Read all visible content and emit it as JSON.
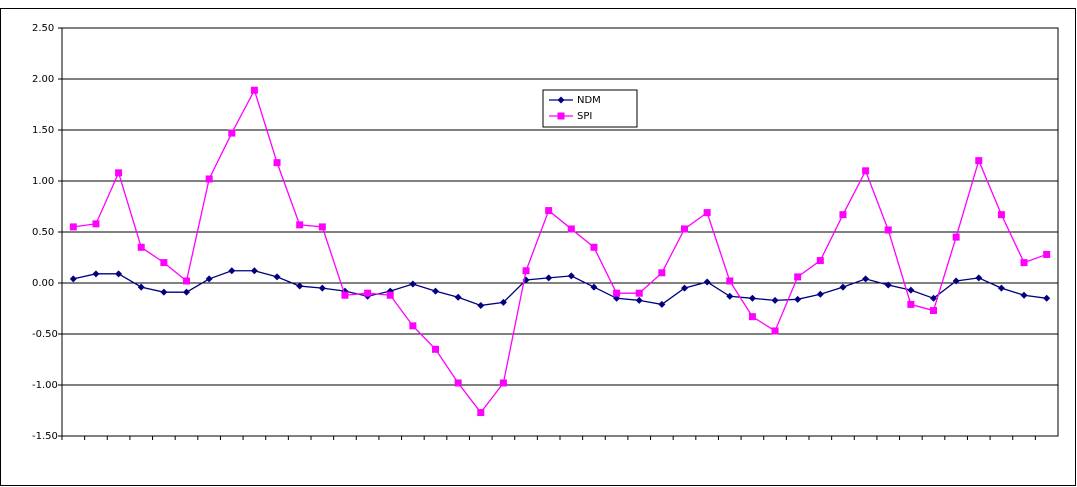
{
  "chart_data": {
    "type": "line",
    "categories": [
      null,
      null,
      null,
      null,
      null,
      null,
      null,
      null,
      null,
      null,
      null,
      null,
      null,
      null,
      null,
      null,
      null,
      null,
      null,
      null,
      null,
      null,
      null,
      null,
      null,
      null,
      null,
      null,
      null,
      null,
      null,
      null,
      null,
      null,
      null,
      null,
      null,
      null,
      null,
      null,
      null,
      null,
      null,
      null
    ],
    "series": [
      {
        "name": "NDM",
        "color": "#000080",
        "marker": "diamond",
        "values": [
          0.04,
          0.09,
          0.09,
          -0.04,
          -0.09,
          -0.09,
          0.04,
          0.12,
          0.12,
          0.06,
          -0.03,
          -0.05,
          -0.08,
          -0.13,
          -0.08,
          -0.01,
          -0.08,
          -0.14,
          -0.22,
          -0.19,
          0.03,
          0.05,
          0.07,
          -0.04,
          -0.15,
          -0.17,
          -0.21,
          -0.05,
          0.01,
          -0.13,
          -0.15,
          -0.17,
          -0.16,
          -0.11,
          -0.04,
          0.04,
          -0.02,
          -0.07,
          -0.15,
          0.02,
          0.05,
          -0.05,
          -0.12,
          -0.15
        ]
      },
      {
        "name": "SPI",
        "color": "#ff00ff",
        "marker": "square",
        "values": [
          0.55,
          0.58,
          1.08,
          0.35,
          0.2,
          0.02,
          1.02,
          1.47,
          1.89,
          1.18,
          0.57,
          0.55,
          -0.12,
          -0.1,
          -0.12,
          -0.42,
          -0.65,
          -0.98,
          -1.27,
          -0.98,
          0.12,
          0.71,
          0.53,
          0.35,
          -0.1,
          -0.1,
          0.1,
          0.53,
          0.69,
          0.02,
          -0.33,
          -0.47,
          0.06,
          0.22,
          0.67,
          1.1,
          0.52,
          -0.21,
          -0.27,
          0.45,
          1.2,
          0.67,
          0.2,
          0.28
        ]
      }
    ],
    "ylim": [
      -1.5,
      2.5
    ],
    "yticks": [
      {
        "value": -1.5,
        "label": "-1.50"
      },
      {
        "value": -1,
        "label": "-1.00"
      },
      {
        "value": -0.5,
        "label": "-0.50"
      },
      {
        "value": 0,
        "label": "0.00"
      },
      {
        "value": 0.5,
        "label": "0.50"
      },
      {
        "value": 1,
        "label": "1.00"
      },
      {
        "value": 1.5,
        "label": "1.50"
      },
      {
        "value": 2,
        "label": "2.00"
      },
      {
        "value": 2.5,
        "label": "2.50"
      }
    ],
    "grid": true,
    "legend": "top-center"
  }
}
